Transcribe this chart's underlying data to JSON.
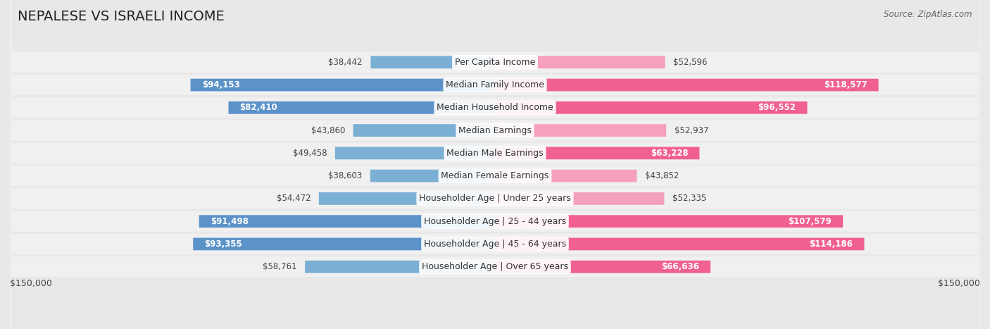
{
  "title": "NEPALESE VS ISRAELI INCOME",
  "source": "Source: ZipAtlas.com",
  "categories": [
    "Per Capita Income",
    "Median Family Income",
    "Median Household Income",
    "Median Earnings",
    "Median Male Earnings",
    "Median Female Earnings",
    "Householder Age | Under 25 years",
    "Householder Age | 25 - 44 years",
    "Householder Age | 45 - 64 years",
    "Householder Age | Over 65 years"
  ],
  "nepalese_values": [
    38442,
    94153,
    82410,
    43860,
    49458,
    38603,
    54472,
    91498,
    93355,
    58761
  ],
  "israeli_values": [
    52596,
    118577,
    96552,
    52937,
    63228,
    43852,
    52335,
    107579,
    114186,
    66636
  ],
  "nepalese_color": "#7bafd4",
  "nepalese_color_dark": "#5b92c8",
  "israeli_color": "#f5a0bc",
  "israeli_color_dark": "#f06090",
  "max_value": 150000,
  "background_color": "#e8e8e8",
  "row_bg": "#f0f0f0",
  "title_fontsize": 14,
  "cat_fontsize": 9,
  "value_fontsize": 8.5,
  "legend_fontsize": 9.5,
  "axis_label_fontsize": 9,
  "nep_large_threshold": 60000,
  "isr_large_threshold": 60000
}
